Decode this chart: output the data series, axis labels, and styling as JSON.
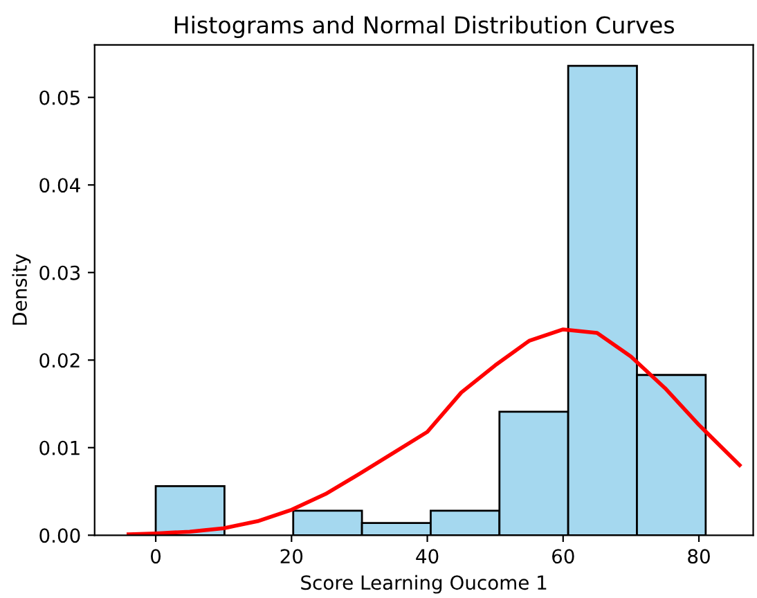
{
  "chart_data": {
    "type": "histogram",
    "title": "Histograms and Normal Distribution Curves",
    "xlabel": "Score Learning Oucome 1",
    "ylabel": "Density",
    "bins": [
      0,
      10.125,
      20.25,
      30.375,
      40.5,
      50.625,
      60.75,
      70.875,
      81
    ],
    "values": [
      0.0056,
      0,
      0.0028,
      0.0014,
      0.0028,
      0.0141,
      0.0536,
      0.0183
    ],
    "color": "#a5d8ef",
    "series": [
      {
        "type": "line",
        "color": "#ff0000",
        "x": [
          -4,
          0,
          5,
          10,
          15,
          20,
          25,
          30,
          35,
          40,
          45,
          50,
          55,
          60,
          65,
          70,
          75,
          80,
          86
        ],
        "values": [
          0.0001,
          0.0002,
          0.0004,
          0.0008,
          0.0016,
          0.0029,
          0.0047,
          0.007,
          0.0094,
          0.0118,
          0.0163,
          0.0194,
          0.0222,
          0.0235,
          0.0231,
          0.0204,
          0.0168,
          0.0126,
          0.008
        ]
      }
    ],
    "xlim": [
      -9,
      88
    ],
    "ylim": [
      0,
      0.056
    ],
    "xticks": [
      0,
      20,
      40,
      60,
      80
    ],
    "yticks": [
      {
        "value": 0,
        "label": "0.00"
      },
      {
        "value": 0.01,
        "label": "0.01"
      },
      {
        "value": 0.02,
        "label": "0.02"
      },
      {
        "value": 0.03,
        "label": "0.03"
      },
      {
        "value": 0.04,
        "label": "0.04"
      },
      {
        "value": 0.05,
        "label": "0.05"
      }
    ],
    "grid": false
  }
}
